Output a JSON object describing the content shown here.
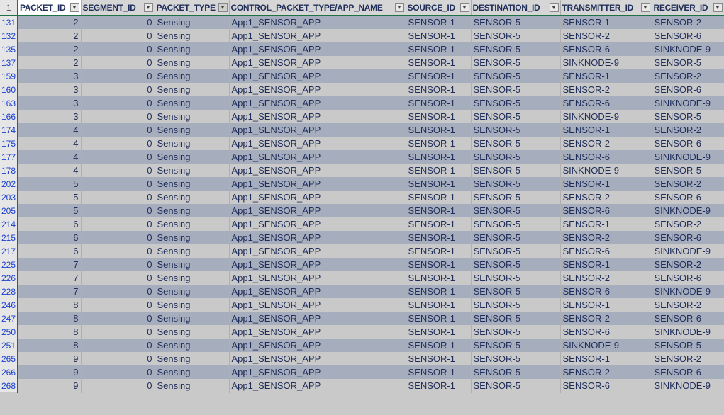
{
  "header_row_number": "1",
  "columns": [
    {
      "label": "PACKET_ID",
      "filter": "dropdown-icon"
    },
    {
      "label": "SEGMENT_ID",
      "filter": "dropdown-icon"
    },
    {
      "label": "PACKET_TYPE",
      "filter": "filter-applied-icon"
    },
    {
      "label": "CONTROL_PACKET_TYPE/APP_NAME",
      "filter": "dropdown-icon"
    },
    {
      "label": "SOURCE_ID",
      "filter": "dropdown-icon"
    },
    {
      "label": "DESTINATION_ID",
      "filter": "dropdown-icon"
    },
    {
      "label": "TRANSMITTER_ID",
      "filter": "dropdown-icon"
    },
    {
      "label": "RECEIVER_ID",
      "filter": "dropdown-icon"
    }
  ],
  "rows": [
    [
      "131",
      "2",
      "0",
      "Sensing",
      "App1_SENSOR_APP",
      "SENSOR-1",
      "SENSOR-5",
      "SENSOR-1",
      "SENSOR-2"
    ],
    [
      "132",
      "2",
      "0",
      "Sensing",
      "App1_SENSOR_APP",
      "SENSOR-1",
      "SENSOR-5",
      "SENSOR-2",
      "SENSOR-6"
    ],
    [
      "135",
      "2",
      "0",
      "Sensing",
      "App1_SENSOR_APP",
      "SENSOR-1",
      "SENSOR-5",
      "SENSOR-6",
      "SINKNODE-9"
    ],
    [
      "137",
      "2",
      "0",
      "Sensing",
      "App1_SENSOR_APP",
      "SENSOR-1",
      "SENSOR-5",
      "SINKNODE-9",
      "SENSOR-5"
    ],
    [
      "159",
      "3",
      "0",
      "Sensing",
      "App1_SENSOR_APP",
      "SENSOR-1",
      "SENSOR-5",
      "SENSOR-1",
      "SENSOR-2"
    ],
    [
      "160",
      "3",
      "0",
      "Sensing",
      "App1_SENSOR_APP",
      "SENSOR-1",
      "SENSOR-5",
      "SENSOR-2",
      "SENSOR-6"
    ],
    [
      "163",
      "3",
      "0",
      "Sensing",
      "App1_SENSOR_APP",
      "SENSOR-1",
      "SENSOR-5",
      "SENSOR-6",
      "SINKNODE-9"
    ],
    [
      "166",
      "3",
      "0",
      "Sensing",
      "App1_SENSOR_APP",
      "SENSOR-1",
      "SENSOR-5",
      "SINKNODE-9",
      "SENSOR-5"
    ],
    [
      "174",
      "4",
      "0",
      "Sensing",
      "App1_SENSOR_APP",
      "SENSOR-1",
      "SENSOR-5",
      "SENSOR-1",
      "SENSOR-2"
    ],
    [
      "175",
      "4",
      "0",
      "Sensing",
      "App1_SENSOR_APP",
      "SENSOR-1",
      "SENSOR-5",
      "SENSOR-2",
      "SENSOR-6"
    ],
    [
      "177",
      "4",
      "0",
      "Sensing",
      "App1_SENSOR_APP",
      "SENSOR-1",
      "SENSOR-5",
      "SENSOR-6",
      "SINKNODE-9"
    ],
    [
      "178",
      "4",
      "0",
      "Sensing",
      "App1_SENSOR_APP",
      "SENSOR-1",
      "SENSOR-5",
      "SINKNODE-9",
      "SENSOR-5"
    ],
    [
      "202",
      "5",
      "0",
      "Sensing",
      "App1_SENSOR_APP",
      "SENSOR-1",
      "SENSOR-5",
      "SENSOR-1",
      "SENSOR-2"
    ],
    [
      "203",
      "5",
      "0",
      "Sensing",
      "App1_SENSOR_APP",
      "SENSOR-1",
      "SENSOR-5",
      "SENSOR-2",
      "SENSOR-6"
    ],
    [
      "205",
      "5",
      "0",
      "Sensing",
      "App1_SENSOR_APP",
      "SENSOR-1",
      "SENSOR-5",
      "SENSOR-6",
      "SINKNODE-9"
    ],
    [
      "214",
      "6",
      "0",
      "Sensing",
      "App1_SENSOR_APP",
      "SENSOR-1",
      "SENSOR-5",
      "SENSOR-1",
      "SENSOR-2"
    ],
    [
      "215",
      "6",
      "0",
      "Sensing",
      "App1_SENSOR_APP",
      "SENSOR-1",
      "SENSOR-5",
      "SENSOR-2",
      "SENSOR-6"
    ],
    [
      "217",
      "6",
      "0",
      "Sensing",
      "App1_SENSOR_APP",
      "SENSOR-1",
      "SENSOR-5",
      "SENSOR-6",
      "SINKNODE-9"
    ],
    [
      "225",
      "7",
      "0",
      "Sensing",
      "App1_SENSOR_APP",
      "SENSOR-1",
      "SENSOR-5",
      "SENSOR-1",
      "SENSOR-2"
    ],
    [
      "226",
      "7",
      "0",
      "Sensing",
      "App1_SENSOR_APP",
      "SENSOR-1",
      "SENSOR-5",
      "SENSOR-2",
      "SENSOR-6"
    ],
    [
      "228",
      "7",
      "0",
      "Sensing",
      "App1_SENSOR_APP",
      "SENSOR-1",
      "SENSOR-5",
      "SENSOR-6",
      "SINKNODE-9"
    ],
    [
      "246",
      "8",
      "0",
      "Sensing",
      "App1_SENSOR_APP",
      "SENSOR-1",
      "SENSOR-5",
      "SENSOR-1",
      "SENSOR-2"
    ],
    [
      "247",
      "8",
      "0",
      "Sensing",
      "App1_SENSOR_APP",
      "SENSOR-1",
      "SENSOR-5",
      "SENSOR-2",
      "SENSOR-6"
    ],
    [
      "250",
      "8",
      "0",
      "Sensing",
      "App1_SENSOR_APP",
      "SENSOR-1",
      "SENSOR-5",
      "SENSOR-6",
      "SINKNODE-9"
    ],
    [
      "251",
      "8",
      "0",
      "Sensing",
      "App1_SENSOR_APP",
      "SENSOR-1",
      "SENSOR-5",
      "SINKNODE-9",
      "SENSOR-5"
    ],
    [
      "265",
      "9",
      "0",
      "Sensing",
      "App1_SENSOR_APP",
      "SENSOR-1",
      "SENSOR-5",
      "SENSOR-1",
      "SENSOR-2"
    ],
    [
      "266",
      "9",
      "0",
      "Sensing",
      "App1_SENSOR_APP",
      "SENSOR-1",
      "SENSOR-5",
      "SENSOR-2",
      "SENSOR-6"
    ],
    [
      "268",
      "9",
      "0",
      "Sensing",
      "App1_SENSOR_APP",
      "SENSOR-1",
      "SENSOR-5",
      "SENSOR-6",
      "SINKNODE-9"
    ]
  ],
  "colors": {
    "band_dark": "#a6adbd",
    "band_light": "#c9c9c9",
    "text": "#1f2d5a",
    "row_number": "#1a3fd0",
    "selection_border": "#1e7145"
  }
}
